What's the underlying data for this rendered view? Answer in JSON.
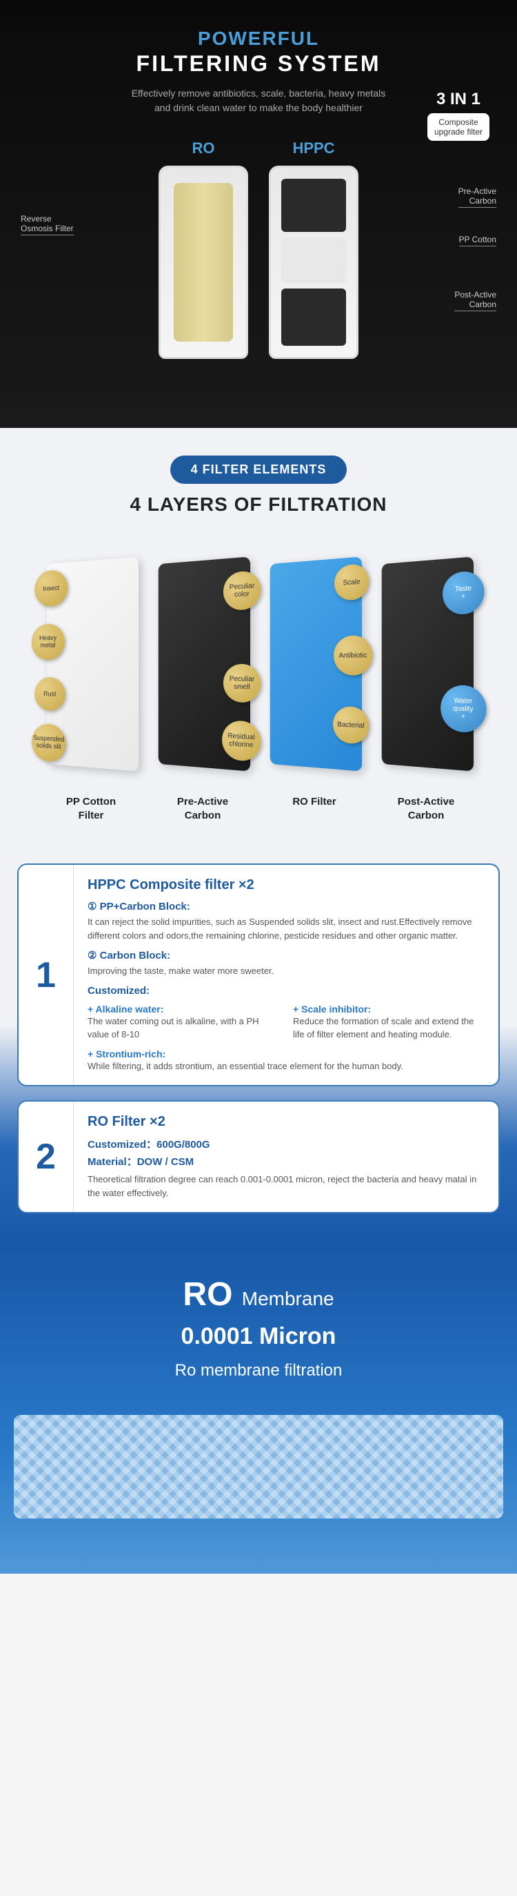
{
  "sec1": {
    "title1": "POWERFUL",
    "title2": "FILTERING SYSTEM",
    "subtitle": "Effectively remove antibiotics, scale, bacteria, heavy metals\nand drink clean water to make the body healthier",
    "filter_ro_label": "RO",
    "filter_hppc_label": "HPPC",
    "badge_title": "3 IN 1",
    "badge_box": "Composite\nupgrade filter",
    "callout_left": "Reverse\nOsmosis Filter",
    "callout_r1": "Pre-Active\nCarbon",
    "callout_r2": "PP Cotton",
    "callout_r3": "Post-Active\nCarbon"
  },
  "sec2": {
    "pill": "4 FILTER ELEMENTS",
    "title": "4 LAYERS OF FILTRATION",
    "layers": [
      {
        "name": "PP Cotton\nFilter",
        "bubbles": [
          "Insect",
          "Heavy\nmetal",
          "Rust",
          "Suspended\nsolids slit"
        ]
      },
      {
        "name": "Pre-Active\nCarbon",
        "bubbles": [
          "Peculiar\ncolor",
          "Peculiar\nsmell",
          "Residual\nchlorine"
        ]
      },
      {
        "name": "RO Filter",
        "bubbles": [
          "Scale",
          "Antibiotic",
          "Bacterial"
        ]
      },
      {
        "name": "Post-Active\nCarbon",
        "bubbles": [
          "Taste\n+",
          "Water\nquality\n+"
        ]
      }
    ]
  },
  "sec3": {
    "card1": {
      "num": "1",
      "title": "HPPC Composite filter ×2",
      "sub1": "① PP+Carbon Block:",
      "text1": "It can reject the solid impurities, such as Suspended solids slit, insect and rust.Effectively remove different colors and odors,the remaining chlorine, pesticide residues and other organic matter.",
      "sub2": "② Carbon Block:",
      "text2": "Improving the taste, make water more sweeter.",
      "customized": "Customized:",
      "tag1": "+ Alkaline water:",
      "tag1_text": "The water coming out is alkaline, with a PH value of 8-10",
      "tag2": "+ Scale inhibitor:",
      "tag2_text": "Reduce the formation of scale and extend the life of filter element and heating module.",
      "tag3": "+ Strontium-rich:",
      "tag3_text": "While filtering, it adds strontium, an essential trace element for the human body."
    },
    "card2": {
      "num": "2",
      "title": "RO Filter ×2",
      "line1": "Customized：600G/800G",
      "line2": "Material：DOW / CSM",
      "text": "Theoretical filtration degree can reach 0.001-0.0001 micron, reject the bacteria and heavy matal in the water effectively."
    }
  },
  "sec4": {
    "t1_big": "RO",
    "t1_small": "Membrane",
    "t2": "0.0001 Micron",
    "t3": "Ro membrane filtration"
  },
  "colors": {
    "accent": "#4a9fd8",
    "primary": "#1e5a9e",
    "dark_bg": "#0a0a0a",
    "blue_grad_start": "#1858a8",
    "blue_grad_end": "#5098d8"
  }
}
